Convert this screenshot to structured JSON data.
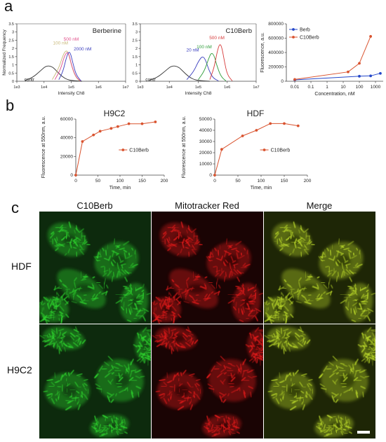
{
  "panels": {
    "a": "a",
    "b": "b",
    "c": "c"
  },
  "chart_data": [
    {
      "id": "hist_berberine",
      "type": "line",
      "title": "Berberine",
      "xlabel": "Intensity Ch8",
      "ylabel": "Normalized Frequency",
      "x_scale": "log",
      "xlim": [
        1000,
        10000000
      ],
      "xticks": [
        "1e3",
        "1e4",
        "1e5",
        "1e6",
        "1e7"
      ],
      "ylim": [
        0,
        3.5
      ],
      "yticks": [
        "0",
        "0.5",
        "1",
        "1.5",
        "2",
        "2.5",
        "3",
        "3.5"
      ],
      "series": [
        {
          "name": "contr",
          "color": "#333333",
          "x": [
            2000,
            4000,
            7000,
            12000,
            20000,
            30000,
            45000,
            70000,
            120000,
            250000
          ],
          "y": [
            0.05,
            0.25,
            0.6,
            0.95,
            0.9,
            0.6,
            0.3,
            0.1,
            0.03,
            0.0
          ]
        },
        {
          "name": "100 nM",
          "color": "#c9b97a",
          "x": [
            20000,
            35000,
            50000,
            65000,
            80000,
            100000,
            140000,
            200000
          ],
          "y": [
            0.1,
            0.8,
            1.6,
            1.9,
            1.7,
            1.0,
            0.3,
            0.02
          ]
        },
        {
          "name": "500 nM",
          "color": "#e14f8a",
          "x": [
            25000,
            40000,
            55000,
            70000,
            85000,
            105000,
            150000,
            220000
          ],
          "y": [
            0.1,
            0.7,
            1.5,
            1.8,
            1.6,
            0.9,
            0.25,
            0.02
          ]
        },
        {
          "name": "2000 nM",
          "color": "#3b3fbf",
          "x": [
            35000,
            50000,
            65000,
            80000,
            95000,
            115000,
            150000,
            230000
          ],
          "y": [
            0.1,
            0.6,
            1.4,
            1.8,
            1.7,
            1.1,
            0.4,
            0.02
          ]
        }
      ]
    },
    {
      "id": "hist_c10berb",
      "type": "line",
      "title": "C10Berb",
      "xlabel": "Intensity Ch8",
      "ylabel": "",
      "x_scale": "log",
      "xlim": [
        1000,
        10000000
      ],
      "xticks": [
        "1e3",
        "1e4",
        "1e5",
        "1e6",
        "1e7"
      ],
      "ylim": [
        0,
        3.5
      ],
      "yticks": [
        "0",
        "0.5",
        "1",
        "1.5",
        "2",
        "2.5",
        "3",
        "3.5"
      ],
      "series": [
        {
          "name": "contr",
          "color": "#333333",
          "x": [
            2000,
            4000,
            7000,
            12000,
            20000,
            30000,
            45000,
            70000,
            120000,
            250000
          ],
          "y": [
            0.05,
            0.25,
            0.6,
            0.95,
            0.9,
            0.6,
            0.3,
            0.1,
            0.03,
            0.0
          ]
        },
        {
          "name": "20 nM",
          "color": "#3b3fbf",
          "x": [
            40000,
            70000,
            100000,
            140000,
            180000,
            230000,
            320000,
            500000
          ],
          "y": [
            0.1,
            0.6,
            1.2,
            1.55,
            1.3,
            0.7,
            0.2,
            0.02
          ]
        },
        {
          "name": "100 nM",
          "color": "#2f9d3a",
          "x": [
            100000,
            160000,
            220000,
            280000,
            350000,
            430000,
            600000,
            900000
          ],
          "y": [
            0.1,
            0.6,
            1.3,
            1.75,
            1.6,
            1.0,
            0.3,
            0.02
          ]
        },
        {
          "name": "500 nM",
          "color": "#d63a3a",
          "x": [
            250000,
            350000,
            450000,
            550000,
            650000,
            800000,
            1000000,
            1500000
          ],
          "y": [
            0.1,
            0.8,
            1.8,
            2.3,
            2.1,
            1.2,
            0.4,
            0.02
          ]
        }
      ]
    },
    {
      "id": "fluor_vs_conc",
      "type": "line",
      "title": "",
      "xlabel": "Concentration, nM",
      "ylabel": "Fluorescence, a.u.",
      "x_scale": "log",
      "xlim": [
        0.003,
        3000
      ],
      "xticks": [
        "0.01",
        "0.1",
        "1",
        "10",
        "100",
        "1000"
      ],
      "ylim": [
        0,
        800000
      ],
      "yticks": [
        "0",
        "200000",
        "400000",
        "600000",
        "800000"
      ],
      "legend": "top-left",
      "series": [
        {
          "name": "Berb",
          "color": "#2447c9",
          "x": [
            0.01,
            100,
            500,
            2000
          ],
          "y": [
            20000,
            70000,
            75000,
            110000
          ]
        },
        {
          "name": "C10Berb",
          "color": "#d9532f",
          "x": [
            0.01,
            20,
            100,
            500
          ],
          "y": [
            25000,
            130000,
            250000,
            625000
          ]
        }
      ]
    },
    {
      "id": "time_h9c2",
      "type": "line",
      "title": "H9C2",
      "xlabel": "Time, min",
      "ylabel": "Fluorescence at 550nm, a.u.",
      "xlim": [
        0,
        200
      ],
      "xticks": [
        "0",
        "50",
        "100",
        "150",
        "200"
      ],
      "ylim": [
        0,
        60000
      ],
      "yticks": [
        "0",
        "20000",
        "40000",
        "60000"
      ],
      "legend": "right",
      "series": [
        {
          "name": "C10Berb",
          "color": "#d9532f",
          "x": [
            0,
            15,
            40,
            55,
            80,
            95,
            120,
            150,
            180
          ],
          "y": [
            0,
            36000,
            43000,
            47000,
            50000,
            52000,
            55000,
            55000,
            57000
          ]
        }
      ]
    },
    {
      "id": "time_hdf",
      "type": "line",
      "title": "HDF",
      "xlabel": "Time, min",
      "ylabel": "Fluorescence at 550nm, a.u.",
      "xlim": [
        0,
        200
      ],
      "xticks": [
        "0",
        "50",
        "100",
        "150",
        "200"
      ],
      "ylim": [
        0,
        50000
      ],
      "yticks": [
        "0",
        "10000",
        "20000",
        "30000",
        "40000",
        "50000"
      ],
      "legend": "right",
      "series": [
        {
          "name": "C10Berb",
          "color": "#d9532f",
          "x": [
            0,
            15,
            60,
            90,
            120,
            150,
            180
          ],
          "y": [
            0,
            23000,
            35000,
            40000,
            46000,
            46000,
            44000
          ]
        }
      ]
    }
  ],
  "micrographs": {
    "columns": [
      "C10Berb",
      "Mitotracker Red",
      "Merge"
    ],
    "rows": [
      "HDF",
      "H9C2"
    ],
    "colors": {
      "green": "#2fd42f",
      "red": "#e21b1b",
      "merge": "#b8d62a"
    }
  }
}
